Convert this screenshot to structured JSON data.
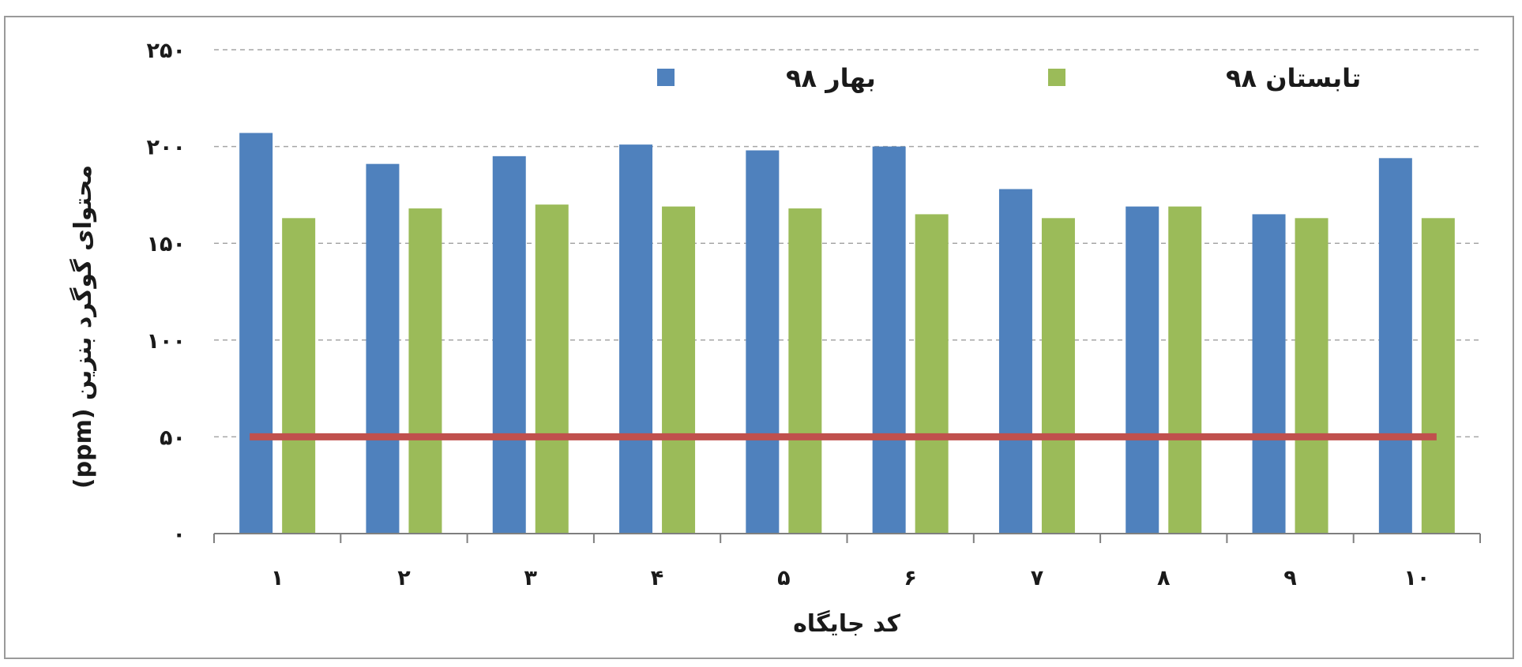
{
  "chart_data": {
    "type": "bar",
    "title": "",
    "xlabel": "کد جایگاه",
    "ylabel": "محتوای گوگرد بنزین (ppm)",
    "ylim": [
      0,
      250
    ],
    "y_ticks": [
      0,
      50,
      100,
      150,
      200,
      250
    ],
    "y_tick_labels": [
      "۰",
      "۵۰",
      "۱۰۰",
      "۱۵۰",
      "۲۰۰",
      "۲۵۰"
    ],
    "categories": [
      "۱",
      "۲",
      "۳",
      "۴",
      "۵",
      "۶",
      "۷",
      "۸",
      "۹",
      "۱۰"
    ],
    "series": [
      {
        "name": "بهار ۹۸",
        "color": "#4f81bd",
        "values": [
          207,
          191,
          195,
          201,
          198,
          200,
          178,
          169,
          165,
          194
        ]
      },
      {
        "name": "تابستان ۹۸",
        "color": "#9bbb59",
        "values": [
          163,
          168,
          170,
          169,
          168,
          165,
          163,
          169,
          163,
          163
        ]
      }
    ],
    "reference_line": {
      "value": 50,
      "color": "#c0504d"
    },
    "grid": true,
    "grid_style": "dashed",
    "legend_position": "top"
  }
}
